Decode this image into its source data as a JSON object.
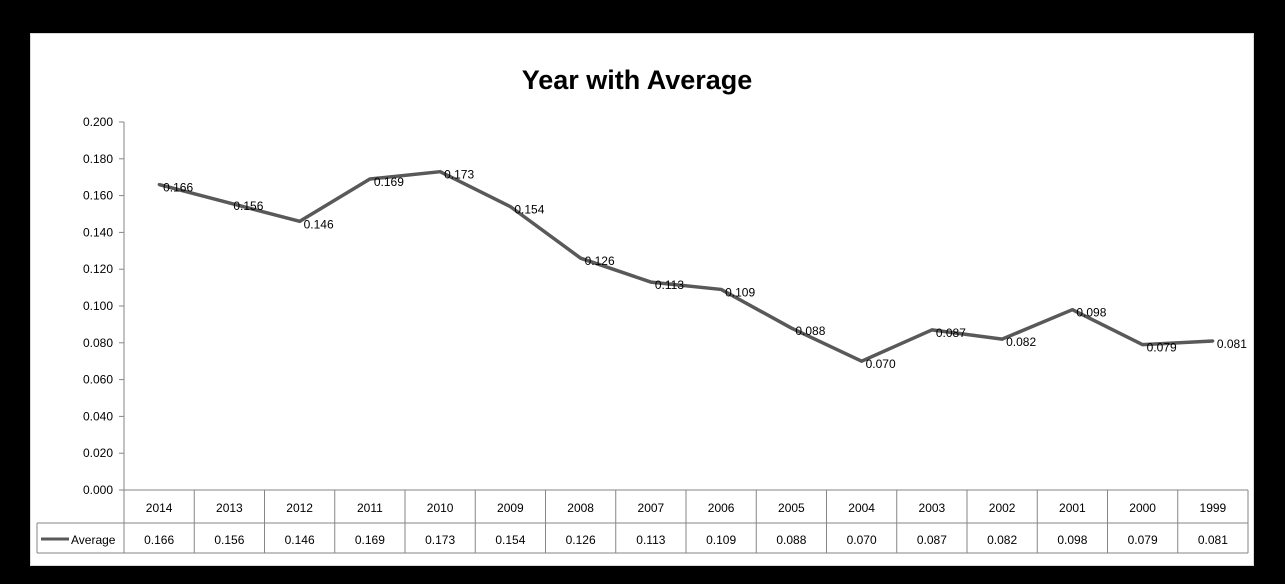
{
  "chart_data": {
    "type": "line",
    "title": "Year with Average",
    "xlabel": "",
    "ylabel": "",
    "categories": [
      "2014",
      "2013",
      "2012",
      "2011",
      "2010",
      "2009",
      "2008",
      "2007",
      "2006",
      "2005",
      "2004",
      "2003",
      "2002",
      "2001",
      "2000",
      "1999"
    ],
    "series": [
      {
        "name": "Average",
        "values": [
          0.166,
          0.156,
          0.146,
          0.169,
          0.173,
          0.154,
          0.126,
          0.113,
          0.109,
          0.088,
          0.07,
          0.087,
          0.082,
          0.098,
          0.079,
          0.081
        ],
        "labels": [
          "0.166",
          "0.156",
          "0.146",
          "0.169",
          "0.173",
          "0.154",
          "0.126",
          "0.113",
          "0.109",
          "0.088",
          "0.070",
          "0.087",
          "0.082",
          "0.098",
          "0.079",
          "0.081"
        ],
        "color": "#595959"
      }
    ],
    "ylim": [
      0,
      0.2
    ],
    "yticks": [
      "0.000",
      "0.020",
      "0.040",
      "0.060",
      "0.080",
      "0.100",
      "0.120",
      "0.140",
      "0.160",
      "0.180",
      "0.200"
    ],
    "data_table": true,
    "grid": false,
    "legend": "data-table"
  }
}
